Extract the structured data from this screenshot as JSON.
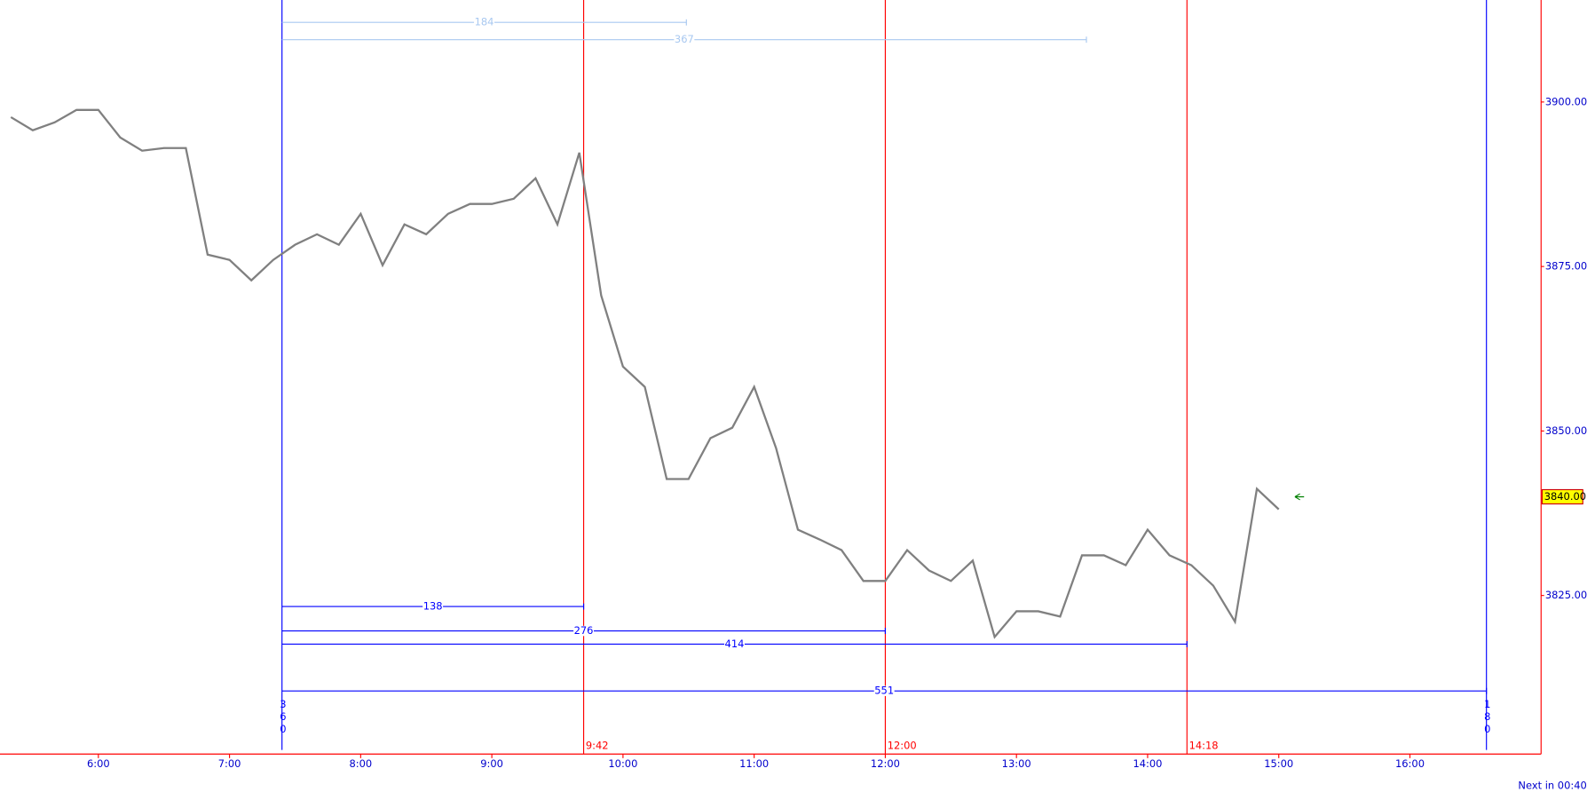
{
  "chart_data": {
    "type": "line",
    "x": [
      "5:20",
      "5:30",
      "5:40",
      "5:50",
      "6:00",
      "6:10",
      "6:20",
      "6:30",
      "6:40",
      "6:50",
      "7:00",
      "7:10",
      "7:20",
      "7:30",
      "7:40",
      "7:50",
      "8:00",
      "8:10",
      "8:20",
      "8:30",
      "8:40",
      "8:50",
      "9:00",
      "9:10",
      "9:20",
      "9:30",
      "9:40",
      "9:50",
      "10:00",
      "10:10",
      "10:20",
      "10:30",
      "10:40",
      "10:50",
      "11:00",
      "11:10",
      "11:20",
      "11:30",
      "11:40",
      "11:50",
      "12:00",
      "12:10",
      "12:20",
      "12:30",
      "12:40",
      "12:50",
      "13:00",
      "13:10",
      "13:20",
      "13:30",
      "13:40",
      "13:50",
      "14:00",
      "14:10",
      "14:20",
      "14:30",
      "14:40",
      "14:50",
      "15:00"
    ],
    "values": [
      3897.7,
      3895.7,
      3896.9,
      3898.8,
      3898.8,
      3894.6,
      3892.6,
      3893.0,
      3893.0,
      3876.8,
      3876.0,
      3872.9,
      3876.0,
      3878.3,
      3879.9,
      3878.3,
      3883.0,
      3875.2,
      3881.4,
      3879.9,
      3883.0,
      3884.5,
      3884.5,
      3885.3,
      3888.4,
      3881.4,
      3892.3,
      3870.6,
      3859.8,
      3856.7,
      3842.7,
      3842.7,
      3848.9,
      3850.5,
      3856.7,
      3847.4,
      3835.0,
      3833.5,
      3831.9,
      3827.2,
      3827.2,
      3831.9,
      3828.8,
      3827.2,
      3830.3,
      3818.7,
      3822.6,
      3822.6,
      3821.8,
      3831.1,
      3831.1,
      3829.6,
      3835.0,
      3831.1,
      3829.6,
      3826.5,
      3821.0,
      3841.2,
      3838.1
    ],
    "color": "#808080",
    "xlim": [
      "5:15",
      "17:00"
    ],
    "xticks": [
      "6:00",
      "7:00",
      "8:00",
      "9:00",
      "10:00",
      "11:00",
      "12:00",
      "13:00",
      "14:00",
      "15:00",
      "16:00"
    ],
    "ylim": [
      3800.9,
      3915.5
    ],
    "yticks": [
      {
        "value": 3825,
        "label": "3825.00"
      },
      {
        "value": 3850,
        "label": "3850.00"
      },
      {
        "value": 3875,
        "label": "3875.00"
      },
      {
        "value": 3900,
        "label": "3900.00"
      }
    ],
    "last_price": {
      "value": 3840,
      "label": "3840.00"
    },
    "markers": [
      {
        "x": "7:24",
        "color": "#0000ff",
        "note": "360"
      },
      {
        "x": "9:42",
        "color": "#ff0000"
      },
      {
        "x": "12:00",
        "color": "#ff0000"
      },
      {
        "x": "14:18",
        "color": "#ff0000"
      },
      {
        "x": "16:35",
        "color": "#0000ff",
        "note": "180"
      }
    ],
    "intervals": [
      {
        "from": "7:24",
        "to": "10:29",
        "count": 184,
        "color": "#a8c8f0"
      },
      {
        "from": "7:24",
        "to": "13:32",
        "count": 367,
        "color": "#a8c8f0"
      },
      {
        "from": "7:24",
        "to": "9:42",
        "count": 138,
        "color": "#0000ff"
      },
      {
        "from": "7:24",
        "to": "12:00",
        "count": 276,
        "color": "#0000ff"
      },
      {
        "from": "7:24",
        "to": "14:18",
        "count": 414,
        "color": "#0000ff"
      },
      {
        "from": "7:24",
        "to": "16:35",
        "count": 551,
        "color": "#0000ff"
      }
    ],
    "status": "Next in 00:40"
  }
}
